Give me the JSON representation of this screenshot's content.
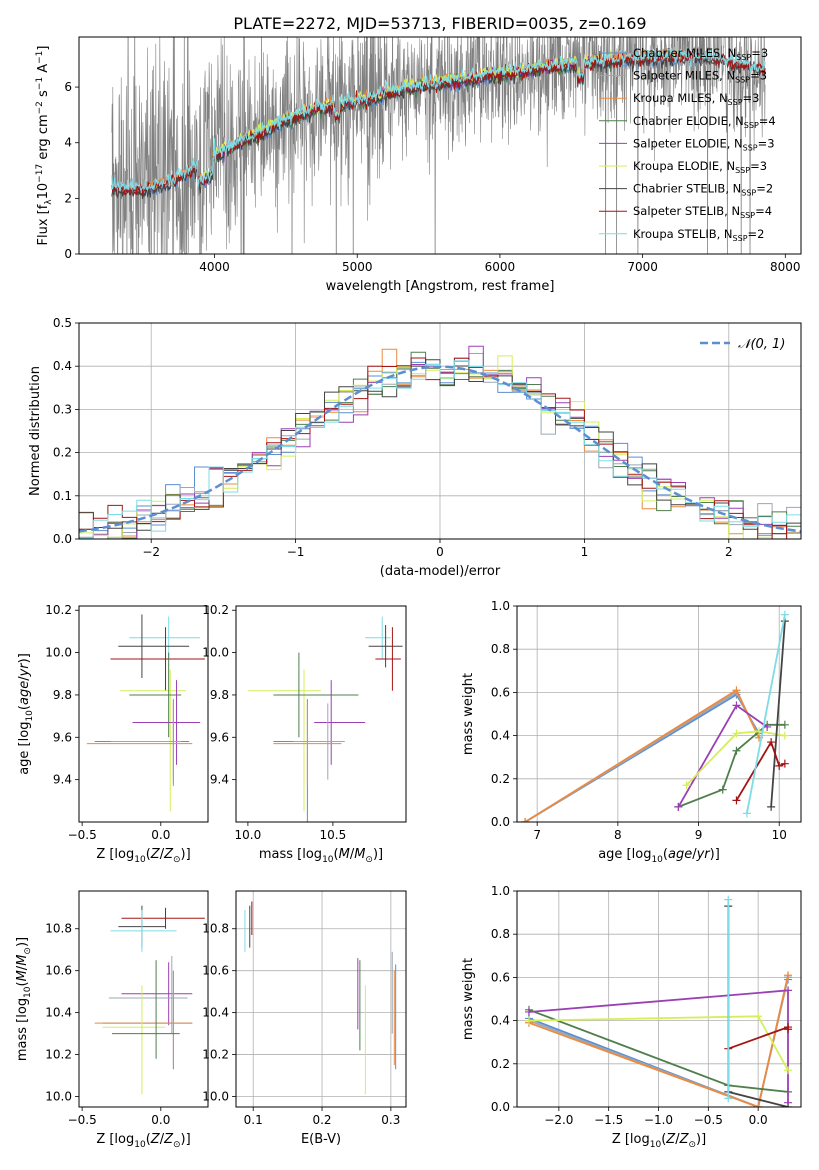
{
  "figure": {
    "title": "PLATE=2272, MJD=53713, FIBERID=0035, z=0.169"
  },
  "colors": {
    "cm": "#5b8fd1",
    "sm": "#9aa8b6",
    "km": "#ec8a3f",
    "ce": "#4f7f4c",
    "se": "#9b3fb5",
    "ke": "#d4ef5a",
    "cs": "#444444",
    "ss": "#a31515",
    "ks": "#7ddce6",
    "data": "#808080",
    "gauss": "#5b8fd1"
  },
  "chart_data": [
    {
      "id": "spectrum",
      "type": "line",
      "xlabel": "wavelength [Angstrom, rest frame]",
      "ylabel": "Flux [f_λ 10^-17 erg cm^-2 s^-1 A^-1]",
      "xlim": [
        3050,
        8110
      ],
      "ylim": [
        0,
        7.8
      ],
      "xticks": [
        4000,
        5000,
        6000,
        7000,
        8000
      ],
      "yticks": [
        0,
        2,
        4,
        6
      ],
      "grid": false,
      "legend_position": "top-right",
      "model_continuum": {
        "x": [
          3280,
          3500,
          3700,
          3900,
          4100,
          4300,
          4500,
          4700,
          4900,
          5100,
          5300,
          5500,
          5700,
          5900,
          6100,
          6300,
          6500,
          6700,
          6900,
          7100,
          7300,
          7500,
          7700,
          7860
        ],
        "y": [
          2.4,
          2.3,
          2.6,
          3.2,
          3.8,
          4.3,
          4.8,
          5.2,
          5.4,
          5.6,
          5.9,
          6.1,
          6.2,
          6.4,
          6.5,
          6.7,
          6.8,
          6.9,
          7.0,
          7.05,
          7.1,
          7.0,
          6.8,
          6.6
        ]
      },
      "series": [
        {
          "key": "cm",
          "label": "Chabrier MILES, N",
          "sub": "SSP",
          "suffix": "=3",
          "x_range": [
            3500,
            7400
          ]
        },
        {
          "key": "sm",
          "label": "Salpeter MILES, N",
          "sub": "SSP",
          "suffix": "=3",
          "x_range": [
            3500,
            7400
          ]
        },
        {
          "key": "km",
          "label": "Kroupa MILES, N",
          "sub": "SSP",
          "suffix": "=3",
          "x_range": [
            3500,
            7400
          ]
        },
        {
          "key": "ce",
          "label": "Chabrier ELODIE, N",
          "sub": "SSP",
          "suffix": "=4",
          "x_range": [
            3900,
            6800
          ]
        },
        {
          "key": "se",
          "label": "Salpeter ELODIE, N",
          "sub": "SSP",
          "suffix": "=3",
          "x_range": [
            3900,
            6800
          ]
        },
        {
          "key": "ke",
          "label": "Kroupa ELODIE, N",
          "sub": "SSP",
          "suffix": "=3",
          "x_range": [
            3900,
            6800
          ]
        },
        {
          "key": "cs",
          "label": "Chabrier STELIB, N",
          "sub": "SSP",
          "suffix": "=2",
          "x_range": [
            3280,
            7860
          ]
        },
        {
          "key": "ss",
          "label": "Salpeter STELIB, N",
          "sub": "SSP",
          "suffix": "=4",
          "x_range": [
            3280,
            7860
          ]
        },
        {
          "key": "ks",
          "label": "Kroupa STELIB, N",
          "sub": "SSP",
          "suffix": "=2",
          "x_range": [
            3280,
            7860
          ]
        }
      ]
    },
    {
      "id": "residuals",
      "type": "histogram",
      "xlabel": "(data-model)/error",
      "ylabel": "Normed distribution",
      "xlim": [
        -2.5,
        2.5
      ],
      "ylim": [
        0,
        0.5
      ],
      "xticks": [
        -2,
        -1,
        0,
        1,
        2
      ],
      "yticks": [
        0.0,
        0.1,
        0.2,
        0.3,
        0.4,
        0.5
      ],
      "grid": true,
      "legend": [
        "𝒩(0, 1)"
      ],
      "legend_position": "top-right",
      "bin_width": 0.1
    },
    {
      "id": "age_vs_Z",
      "type": "errorbar",
      "xlabel": "Z [log10(Z/Z☉)]",
      "ylabel": "age [log10(age/yr)]",
      "xlim": [
        -0.52,
        0.3
      ],
      "ylim": [
        9.2,
        10.22
      ],
      "xticks": [
        -0.5,
        0.0
      ],
      "yticks": [
        9.4,
        9.6,
        9.8,
        10.0,
        10.2
      ],
      "points": [
        {
          "key": "ks",
          "x": 0.05,
          "y": 10.07,
          "xerr": [
            0.25,
            0.2
          ],
          "yerr": [
            0.1,
            0.1
          ]
        },
        {
          "key": "cs",
          "x": -0.12,
          "y": 10.03,
          "xerr": [
            0.15,
            0.3
          ],
          "yerr": [
            0.15,
            0.15
          ]
        },
        {
          "key": "ss",
          "x": 0.03,
          "y": 9.97,
          "xerr": [
            0.35,
            0.25
          ],
          "yerr": [
            0.15,
            0.15
          ]
        },
        {
          "key": "ke",
          "x": 0.06,
          "y": 9.82,
          "xerr": [
            0.32,
            0.1
          ],
          "yerr": [
            0.57,
            0.1
          ]
        },
        {
          "key": "ce",
          "x": 0.05,
          "y": 9.8,
          "xerr": [
            0.25,
            0.08
          ],
          "yerr": [
            0.2,
            0.2
          ]
        },
        {
          "key": "se",
          "x": 0.1,
          "y": 9.67,
          "xerr": [
            0.28,
            0.15
          ],
          "yerr": [
            0.2,
            0.2
          ]
        },
        {
          "key": "cm",
          "x": 0.08,
          "y": 9.58,
          "xerr": [
            0.5,
            0.1
          ],
          "yerr": [
            0.2,
            0.2
          ]
        },
        {
          "key": "sm",
          "x": 0.08,
          "y": 9.58,
          "xerr": [
            0.4,
            0.05
          ],
          "yerr": [
            0.18,
            0.18
          ]
        },
        {
          "key": "km",
          "x": 0.08,
          "y": 9.57,
          "xerr": [
            0.55,
            0.12
          ],
          "yerr": [
            0.2,
            0.2
          ]
        }
      ]
    },
    {
      "id": "age_vs_mass",
      "type": "errorbar",
      "xlabel": "mass [log10(M/M☉)]",
      "ylabel": "",
      "xlim": [
        9.93,
        10.93
      ],
      "ylim": [
        9.2,
        10.22
      ],
      "xticks": [
        10.0,
        10.5
      ],
      "yticks": [
        9.4,
        9.6,
        9.8,
        10.0,
        10.2
      ],
      "points": [
        {
          "key": "ks",
          "x": 10.79,
          "y": 10.07,
          "xerr": [
            0.1,
            0.05
          ],
          "yerr": [
            0.1,
            0.1
          ]
        },
        {
          "key": "cs",
          "x": 10.81,
          "y": 10.03,
          "xerr": [
            0.1,
            0.1
          ],
          "yerr": [
            0.1,
            0.1
          ]
        },
        {
          "key": "ss",
          "x": 10.85,
          "y": 9.97,
          "xerr": [
            0.1,
            0.05
          ],
          "yerr": [
            0.15,
            0.15
          ]
        },
        {
          "key": "ke",
          "x": 10.33,
          "y": 9.82,
          "xerr": [
            0.33,
            0.1
          ],
          "yerr": [
            0.57,
            0.1
          ]
        },
        {
          "key": "ce",
          "x": 10.3,
          "y": 9.8,
          "xerr": [
            0.15,
            0.35
          ],
          "yerr": [
            0.2,
            0.2
          ]
        },
        {
          "key": "se",
          "x": 10.49,
          "y": 9.67,
          "xerr": [
            0.1,
            0.2
          ],
          "yerr": [
            0.2,
            0.2
          ]
        },
        {
          "key": "cm",
          "x": 10.35,
          "y": 9.58,
          "xerr": [
            0.2,
            0.1
          ],
          "yerr": [
            0.48,
            0.2
          ]
        },
        {
          "key": "sm",
          "x": 10.47,
          "y": 9.58,
          "xerr": [
            0.2,
            0.1
          ],
          "yerr": [
            0.18,
            0.18
          ]
        },
        {
          "key": "km",
          "x": 10.35,
          "y": 9.57,
          "xerr": [
            0.2,
            0.2
          ],
          "yerr": [
            0.2,
            0.2
          ]
        }
      ]
    },
    {
      "id": "massweight_vs_age",
      "type": "line",
      "xlabel": "age [log10(age/yr)]",
      "ylabel": "mass weight",
      "xlim": [
        6.75,
        10.27
      ],
      "ylim": [
        0,
        1
      ],
      "xticks": [
        7,
        8,
        9,
        10
      ],
      "yticks": [
        0.0,
        0.2,
        0.4,
        0.6,
        0.8,
        1.0
      ],
      "grid": true,
      "series": [
        {
          "key": "cm",
          "x": [
            6.85,
            9.47,
            9.75
          ],
          "y": [
            0.0,
            0.59,
            0.41
          ]
        },
        {
          "key": "sm",
          "x": [
            6.85,
            9.47,
            9.75
          ],
          "y": [
            0.0,
            0.6,
            0.4
          ]
        },
        {
          "key": "km",
          "x": [
            6.85,
            9.47,
            9.75
          ],
          "y": [
            0.0,
            0.61,
            0.39
          ]
        },
        {
          "key": "ce",
          "x": [
            8.75,
            9.3,
            9.47,
            9.85,
            10.07
          ],
          "y": [
            0.07,
            0.15,
            0.33,
            0.45,
            0.45
          ]
        },
        {
          "key": "se",
          "x": [
            8.75,
            9.47,
            9.85
          ],
          "y": [
            0.07,
            0.54,
            0.44
          ]
        },
        {
          "key": "ke",
          "x": [
            8.85,
            9.47,
            9.75,
            10.07
          ],
          "y": [
            0.17,
            0.41,
            0.42,
            0.4
          ]
        },
        {
          "key": "cs",
          "x": [
            9.9,
            10.07
          ],
          "y": [
            0.07,
            0.93
          ]
        },
        {
          "key": "ss",
          "x": [
            9.47,
            9.9,
            10.0,
            10.07
          ],
          "y": [
            0.1,
            0.37,
            0.26,
            0.27
          ]
        },
        {
          "key": "ks",
          "x": [
            9.6,
            10.07
          ],
          "y": [
            0.04,
            0.96
          ]
        }
      ]
    },
    {
      "id": "mass_vs_Z",
      "type": "errorbar",
      "xlabel": "Z [log10(Z/Z☉)]",
      "ylabel": "mass [log10(M/M☉)]",
      "xlim": [
        -0.52,
        0.3
      ],
      "ylim": [
        9.95,
        10.98
      ],
      "xticks": [
        -0.5,
        0.0
      ],
      "yticks": [
        10.0,
        10.2,
        10.4,
        10.6,
        10.8
      ],
      "points": [
        {
          "key": "ss",
          "x": 0.03,
          "y": 10.85,
          "xerr": [
            0.28,
            0.25
          ],
          "yerr": [
            0.05,
            0.05
          ]
        },
        {
          "key": "cs",
          "x": -0.12,
          "y": 10.81,
          "xerr": [
            0.15,
            0.15
          ],
          "yerr": [
            0.1,
            0.1
          ]
        },
        {
          "key": "ks",
          "x": -0.12,
          "y": 10.79,
          "xerr": [
            0.2,
            0.22
          ],
          "yerr": [
            0.1,
            0.1
          ]
        },
        {
          "key": "se",
          "x": 0.05,
          "y": 10.49,
          "xerr": [
            0.3,
            0.15
          ],
          "yerr": [
            0.15,
            0.15
          ]
        },
        {
          "key": "sm",
          "x": 0.07,
          "y": 10.47,
          "xerr": [
            0.4,
            0.1
          ],
          "yerr": [
            0.17,
            0.2
          ]
        },
        {
          "key": "cm",
          "x": 0.08,
          "y": 10.35,
          "xerr": [
            0.45,
            0.12
          ],
          "yerr": [
            0.22,
            0.25
          ]
        },
        {
          "key": "km",
          "x": 0.08,
          "y": 10.35,
          "xerr": [
            0.5,
            0.12
          ],
          "yerr": [
            0.2,
            0.25
          ]
        },
        {
          "key": "ke",
          "x": -0.12,
          "y": 10.33,
          "xerr": [
            0.25,
            0.15
          ],
          "yerr": [
            0.32,
            0.2
          ]
        },
        {
          "key": "ce",
          "x": -0.03,
          "y": 10.3,
          "xerr": [
            0.28,
            0.15
          ],
          "yerr": [
            0.12,
            0.35
          ]
        }
      ]
    },
    {
      "id": "mass_vs_ebv",
      "type": "errorbar",
      "xlabel": "E(B-V)",
      "ylabel": "",
      "xlim": [
        0.075,
        0.322
      ],
      "ylim": [
        9.95,
        10.98
      ],
      "xticks": [
        0.1,
        0.2,
        0.3
      ],
      "yticks": [
        10.0,
        10.2,
        10.4,
        10.6,
        10.8
      ],
      "grid": true,
      "points": [
        {
          "key": "ss",
          "x": 0.098,
          "y": 10.85,
          "xerr": [
            0,
            0
          ],
          "yerr": [
            0.08,
            0.08
          ]
        },
        {
          "key": "cs",
          "x": 0.095,
          "y": 10.81,
          "xerr": [
            0,
            0
          ],
          "yerr": [
            0.1,
            0.1
          ]
        },
        {
          "key": "ks",
          "x": 0.088,
          "y": 10.79,
          "xerr": [
            0,
            0
          ],
          "yerr": [
            0.1,
            0.1
          ]
        },
        {
          "key": "se",
          "x": 0.252,
          "y": 10.49,
          "xerr": [
            0,
            0
          ],
          "yerr": [
            0.17,
            0.17
          ]
        },
        {
          "key": "ce",
          "x": 0.255,
          "y": 10.3,
          "xerr": [
            0,
            0
          ],
          "yerr": [
            0.08,
            0.35
          ]
        },
        {
          "key": "ke",
          "x": 0.263,
          "y": 10.33,
          "xerr": [
            0,
            0
          ],
          "yerr": [
            0.32,
            0.2
          ]
        },
        {
          "key": "sm",
          "x": 0.302,
          "y": 10.47,
          "xerr": [
            0,
            0
          ],
          "yerr": [
            0.17,
            0.22
          ]
        },
        {
          "key": "km",
          "x": 0.305,
          "y": 10.35,
          "xerr": [
            0,
            0
          ],
          "yerr": [
            0.2,
            0.25
          ]
        },
        {
          "key": "cm",
          "x": 0.307,
          "y": 10.35,
          "xerr": [
            0,
            0
          ],
          "yerr": [
            0.22,
            0.28
          ]
        }
      ]
    },
    {
      "id": "massweight_vs_Z",
      "type": "line",
      "xlabel": "Z [log10(Z/Z☉)]",
      "ylabel": "mass weight",
      "xlim": [
        -2.42,
        0.43
      ],
      "ylim": [
        0,
        1
      ],
      "xticks": [
        -2.0,
        -1.5,
        -1.0,
        -0.5,
        0.0
      ],
      "yticks": [
        0.0,
        0.2,
        0.4,
        0.6,
        0.8,
        1.0
      ],
      "grid": true,
      "series": [
        {
          "key": "cm",
          "x": [
            -2.3,
            0.0,
            0.3,
            0.3
          ],
          "y": [
            0.41,
            0.0,
            0.6,
            0.59
          ]
        },
        {
          "key": "sm",
          "x": [
            -2.3,
            0.0,
            0.3
          ],
          "y": [
            0.4,
            0.0,
            0.6
          ]
        },
        {
          "key": "km",
          "x": [
            -2.3,
            0.0,
            0.3
          ],
          "y": [
            0.39,
            0.0,
            0.61
          ]
        },
        {
          "key": "ce",
          "x": [
            -2.3,
            -0.3,
            0.3
          ],
          "y": [
            0.45,
            0.1,
            0.07
          ]
        },
        {
          "key": "se",
          "x": [
            -2.3,
            0.3,
            0.3
          ],
          "y": [
            0.44,
            0.54,
            0.02
          ]
        },
        {
          "key": "ke",
          "x": [
            -2.3,
            0.0,
            0.3
          ],
          "y": [
            0.4,
            0.42,
            0.17
          ]
        },
        {
          "key": "cs",
          "x": [
            -0.3,
            -0.3,
            0.3
          ],
          "y": [
            0.93,
            0.07,
            0.0
          ]
        },
        {
          "key": "ss",
          "x": [
            -0.3,
            0.3,
            0.3
          ],
          "y": [
            0.27,
            0.37,
            0.36
          ]
        },
        {
          "key": "ks",
          "x": [
            -0.3,
            -0.3
          ],
          "y": [
            0.96,
            0.04
          ]
        }
      ]
    }
  ]
}
